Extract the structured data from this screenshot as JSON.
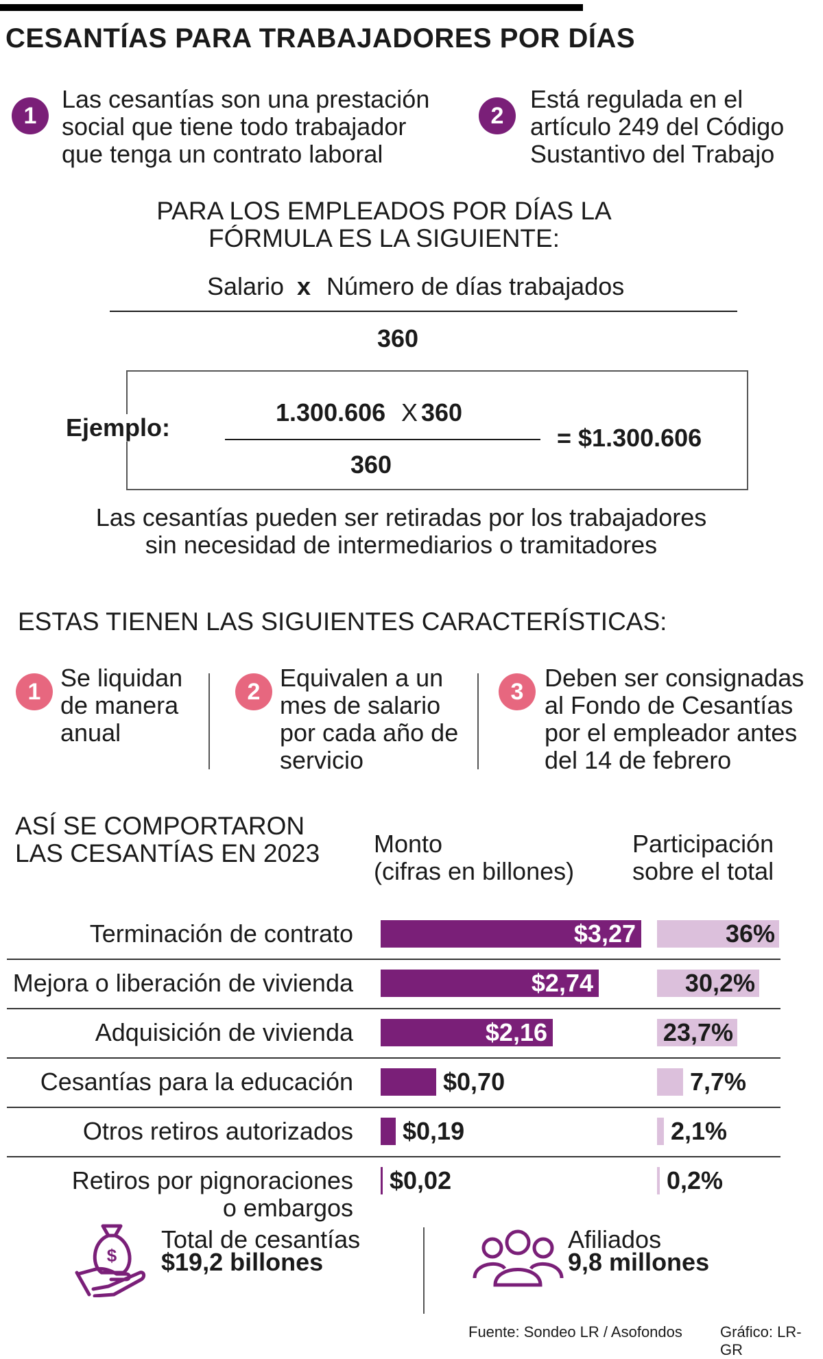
{
  "title": "CESANTÍAS PARA TRABAJADORES POR DÍAS",
  "intro": [
    {
      "num": "1",
      "text": "Las cesantías son una prestación\nsocial que tiene todo trabajador\nque tenga un contrato laboral"
    },
    {
      "num": "2",
      "text": "Está regulada en el\nartículo 249 del Código\nSustantivo del Trabajo"
    }
  ],
  "formula": {
    "heading": "PARA LOS EMPLEADOS POR DÍAS LA\nFÓRMULA ES LA SIGUIENTE:",
    "numerator_left": "Salario",
    "times": "x",
    "numerator_right": "Número de días trabajados",
    "denominator": "360"
  },
  "example": {
    "label": "Ejemplo:",
    "num_a": "1.300.606",
    "times": "X",
    "num_b": "360",
    "denominator": "360",
    "result": "= $1.300.606"
  },
  "note": "Las cesantías pueden ser retiradas por los trabajadores\nsin necesidad de intermediarios o tramitadores",
  "features": {
    "heading": "ESTAS TIENEN LAS SIGUIENTES CARACTERÍSTICAS:",
    "items": [
      {
        "num": "1",
        "text": "Se liquidan\nde manera\nanual"
      },
      {
        "num": "2",
        "text": "Equivalen a un\nmes de salario\npor cada año de\nservicio"
      },
      {
        "num": "3",
        "text": "Deben ser consignadas\nal Fondo de Cesantías\npor el empleador antes\ndel 14 de febrero"
      }
    ]
  },
  "colors": {
    "bar": "#7a1f78",
    "share": "#dcc0dc",
    "pink": "#e7677f"
  },
  "chart_data": {
    "type": "bar",
    "title": "ASÍ SE COMPORTARON\nLAS CESANTÍAS EN 2023",
    "value_header": "Monto\n(cifras en billones)",
    "share_header": "Participación\nsobre el total",
    "categories": [
      "Terminación de contrato",
      "Mejora o liberación de vivienda",
      "Adquisición de vivienda",
      "Cesantías para la educación",
      "Otros retiros autorizados",
      "Retiros por pignoraciones\no embargos"
    ],
    "series": [
      {
        "name": "Monto",
        "values": [
          3.27,
          2.74,
          2.16,
          0.7,
          0.19,
          0.02
        ],
        "labels": [
          "$3,27",
          "$2,74",
          "$2,16",
          "$0,70",
          "$0,19",
          "$0,02"
        ]
      },
      {
        "name": "Participación",
        "values": [
          36,
          30.2,
          23.7,
          7.7,
          2.1,
          0.2
        ],
        "labels": [
          "36%",
          "30,2%",
          "23,7%",
          "7,7%",
          "2,1%",
          "0,2%"
        ]
      }
    ]
  },
  "totals": {
    "total_label": "Total de cesantías",
    "total_value": "$19,2 billones",
    "affiliates_label": "Afiliados",
    "affiliates_value": "9,8 millones"
  },
  "footer": {
    "source": "Fuente: Sondeo LR / Asofondos",
    "credit": "Gráfico: LR-GR"
  },
  "icons": [
    "money-bag-hand-icon",
    "people-group-icon"
  ]
}
